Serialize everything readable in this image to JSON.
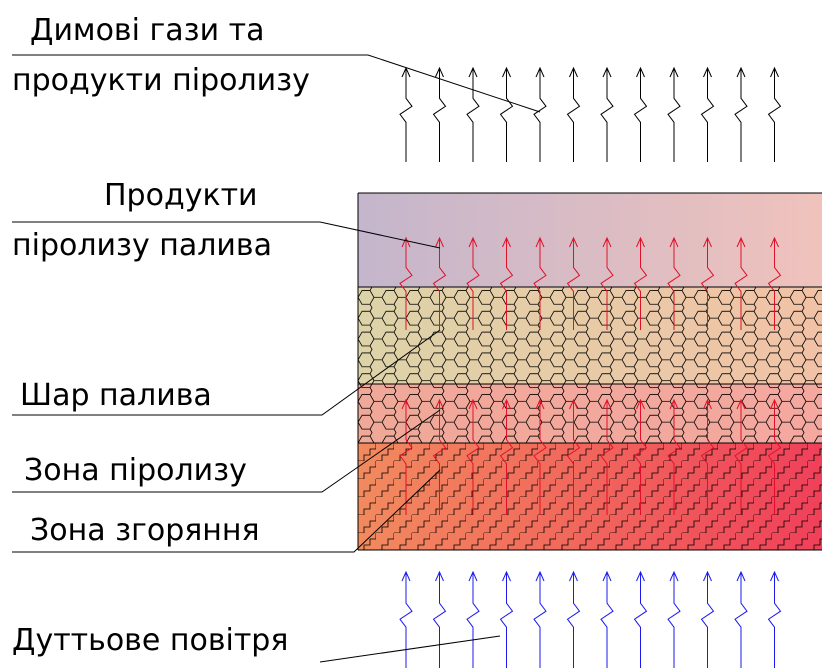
{
  "labels": {
    "flue_gas_line1": "Димові гази та",
    "flue_gas_line2": "продукти піролизу",
    "pyrolysis_products_line1": "Продукти",
    "pyrolysis_products_line2": "піролизу палива",
    "fuel_layer": "Шар палива",
    "pyrolysis_zone": "Зона піролизу",
    "combustion_zone": "Зона згоряння",
    "blast_air": "Дуттьове повітря"
  },
  "colors": {
    "flue_gas_arrows": "#000000",
    "pyrolysis_arrows": "#e0102a",
    "air_arrows": "#1a1aee",
    "products_zone_left": "#c4b6cc",
    "products_zone_right": "#f0c2bc",
    "fuel_layer_left": "#ddd3a8",
    "fuel_layer_right": "#f2c2a6",
    "pyrolysis_zone_left": "#f0a898",
    "pyrolysis_zone_right": "#f4a8a0",
    "combustion_zone_left": "#f28a5e",
    "combustion_zone_right": "#f0405a"
  },
  "icons": {
    "arrow": "wavy-up-arrow-icon",
    "hatch_hex": "hexagon-pattern",
    "hatch_stairs": "step-pattern"
  }
}
